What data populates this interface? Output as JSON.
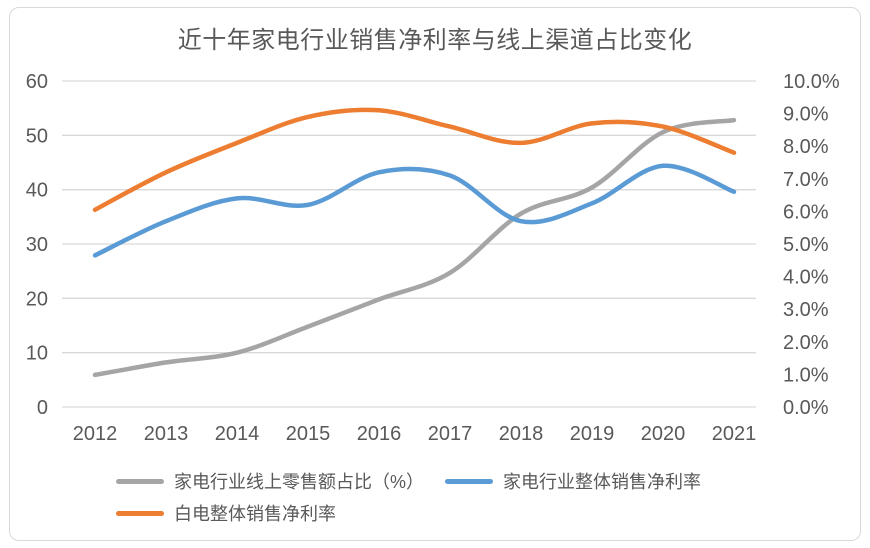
{
  "card": {
    "title": "近十年家电行业销售净利率与线上渠道占比变化"
  },
  "chart_data": {
    "type": "line",
    "title": "近十年家电行业销售净利率与线上渠道占比变化",
    "categories": [
      "2012",
      "2013",
      "2014",
      "2015",
      "2016",
      "2017",
      "2018",
      "2019",
      "2020",
      "2021"
    ],
    "series": [
      {
        "id": "online-retail-share",
        "name": "家电行业线上零售额占比（%）",
        "axis": "left",
        "color": "#A5A5A5",
        "values": [
          5.9,
          8.2,
          10.0,
          14.8,
          19.8,
          24.7,
          35.6,
          40.4,
          50.6,
          52.8
        ]
      },
      {
        "id": "appliance-net-margin",
        "name": "家电行业整体销售净利率",
        "axis": "right",
        "unit": "%",
        "color": "#5B9BD5",
        "values": [
          4.65,
          5.7,
          6.4,
          6.2,
          7.2,
          7.1,
          5.7,
          6.25,
          7.4,
          6.6
        ]
      },
      {
        "id": "white-goods-net-margin",
        "name": "白电整体销售净利率",
        "axis": "right",
        "unit": "%",
        "color": "#ED7D31",
        "values": [
          6.05,
          7.2,
          8.1,
          8.9,
          9.1,
          8.6,
          8.1,
          8.7,
          8.6,
          7.8
        ]
      }
    ],
    "left_axis": {
      "range": [
        0,
        60
      ],
      "step": 10,
      "tick_labels": [
        "0",
        "10",
        "20",
        "30",
        "40",
        "50",
        "60"
      ]
    },
    "right_axis": {
      "range": [
        0,
        10
      ],
      "step": 1,
      "tick_labels": [
        "0.0%",
        "1.0%",
        "2.0%",
        "3.0%",
        "4.0%",
        "5.0%",
        "6.0%",
        "7.0%",
        "8.0%",
        "9.0%",
        "10.0%"
      ]
    },
    "grid": true,
    "smooth": true,
    "legend_position": "bottom",
    "colors": {
      "grid": "#D9D9D9",
      "axis_text": "#595959",
      "border": "#D9D9D9"
    }
  }
}
